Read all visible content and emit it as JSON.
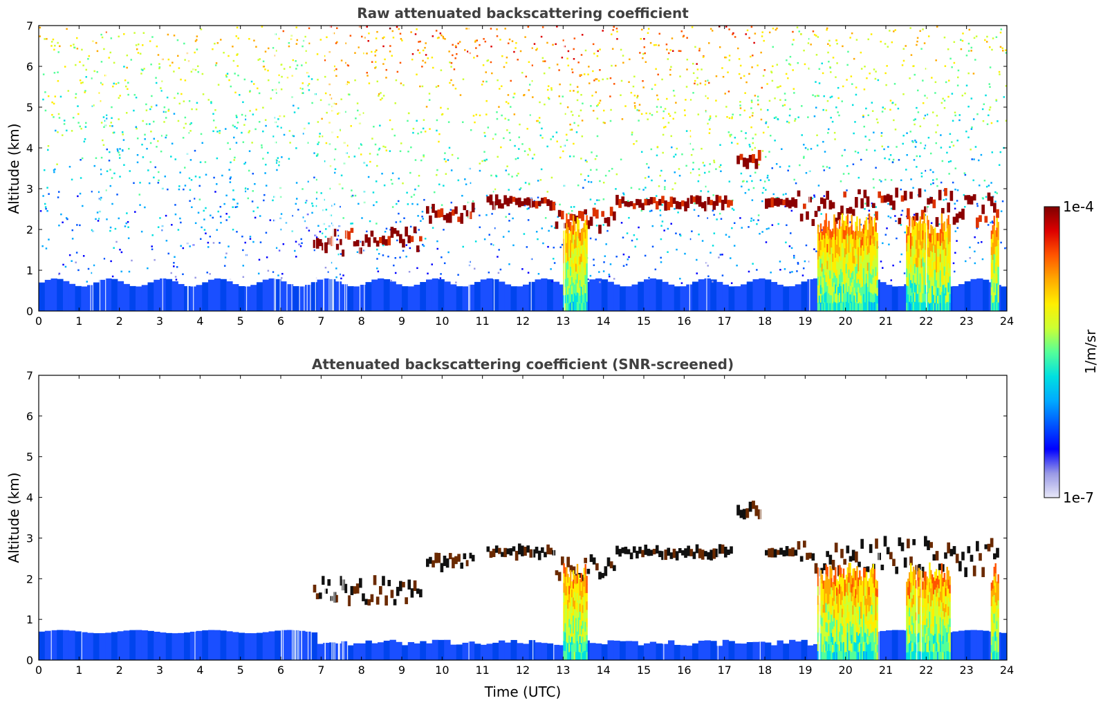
{
  "chart_data": [
    {
      "type": "heatmap",
      "title": "Raw attenuated backscattering coefficient",
      "xlabel": "",
      "ylabel": "Altitude (km)",
      "xlim": [
        0,
        24
      ],
      "ylim": [
        0,
        7
      ],
      "x_ticks": [
        "0",
        "1",
        "2",
        "3",
        "4",
        "5",
        "6",
        "7",
        "8",
        "9",
        "10",
        "11",
        "12",
        "13",
        "14",
        "15",
        "16",
        "17",
        "18",
        "19",
        "20",
        "21",
        "22",
        "23",
        "24"
      ],
      "y_ticks": [
        "0",
        "1",
        "2",
        "3",
        "4",
        "5",
        "6",
        "7"
      ],
      "cloud_layers": [
        {
          "x_start": 6.8,
          "x_end": 9.5,
          "alt_min": 1.2,
          "alt_max": 2.2
        },
        {
          "x_start": 9.6,
          "x_end": 10.8,
          "alt_min": 2.1,
          "alt_max": 2.7
        },
        {
          "x_start": 11.1,
          "x_end": 12.8,
          "alt_min": 2.5,
          "alt_max": 2.8
        },
        {
          "x_start": 12.8,
          "x_end": 14.3,
          "alt_min": 1.8,
          "alt_max": 2.7
        },
        {
          "x_start": 14.3,
          "x_end": 17.2,
          "alt_min": 2.5,
          "alt_max": 2.8
        },
        {
          "x_start": 17.3,
          "x_end": 17.9,
          "alt_min": 3.5,
          "alt_max": 3.9
        },
        {
          "x_start": 18.0,
          "x_end": 18.8,
          "alt_min": 2.6,
          "alt_max": 2.7
        },
        {
          "x_start": 18.8,
          "x_end": 23.8,
          "alt_min": 1.9,
          "alt_max": 3.2
        }
      ]
    },
    {
      "type": "heatmap",
      "title": "Attenuated backscattering coefficient (SNR-screened)",
      "xlabel": "Time (UTC)",
      "ylabel": "Altitude (km)",
      "xlim": [
        0,
        24
      ],
      "ylim": [
        0,
        7
      ],
      "x_ticks": [
        "0",
        "1",
        "2",
        "3",
        "4",
        "5",
        "6",
        "7",
        "8",
        "9",
        "10",
        "11",
        "12",
        "13",
        "14",
        "15",
        "16",
        "17",
        "18",
        "19",
        "20",
        "21",
        "22",
        "23",
        "24"
      ],
      "y_ticks": [
        "0",
        "1",
        "2",
        "3",
        "4",
        "5",
        "6",
        "7"
      ]
    }
  ],
  "colorbar": {
    "label": "1/m/sr",
    "max_label": "1e-4",
    "min_label": "1e-7",
    "colormap": [
      "#e8e8f8",
      "#9999e6",
      "#0000ff",
      "#0055ff",
      "#00aaff",
      "#00e0e0",
      "#55ff99",
      "#ccff33",
      "#ffee00",
      "#ffaa00",
      "#ff5500",
      "#dd0000",
      "#7f0000"
    ]
  }
}
